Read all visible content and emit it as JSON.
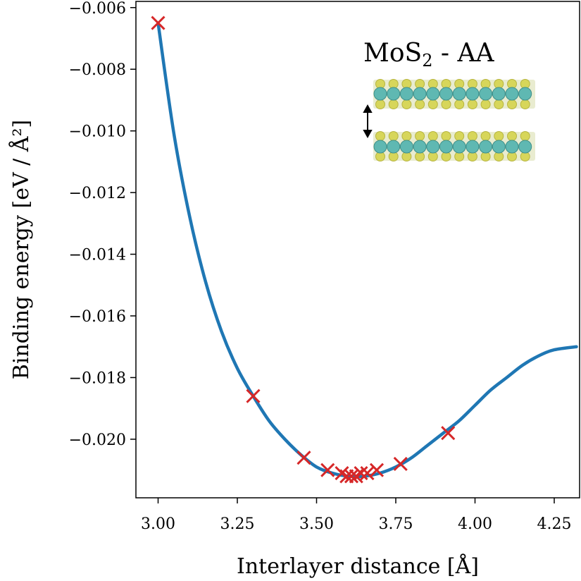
{
  "chart_data": {
    "type": "line",
    "title": "",
    "xlabel": "Interlayer distance [Å]",
    "ylabel": "Binding energy [eV / Å²]",
    "xlim": [
      2.93,
      4.33
    ],
    "ylim": [
      -0.0219,
      -0.0058
    ],
    "x_ticks": [
      3.0,
      3.25,
      3.5,
      3.75,
      4.0,
      4.25
    ],
    "x_tick_labels": [
      "3.00",
      "3.25",
      "3.50",
      "3.75",
      "4.00",
      "4.25"
    ],
    "y_ticks": [
      -0.006,
      -0.008,
      -0.01,
      -0.012,
      -0.014,
      -0.016,
      -0.018,
      -0.02
    ],
    "y_tick_labels": [
      "−0.006",
      "−0.008",
      "−0.010",
      "−0.012",
      "−0.014",
      "−0.016",
      "−0.018",
      "−0.020"
    ],
    "grid": false,
    "series": [
      {
        "kind": "fit-curve",
        "color": "#1f77b4",
        "x": [
          3.0,
          3.05,
          3.1,
          3.15,
          3.2,
          3.25,
          3.3,
          3.35,
          3.4,
          3.45,
          3.5,
          3.55,
          3.6,
          3.65,
          3.7,
          3.75,
          3.8,
          3.85,
          3.9,
          3.95,
          4.0,
          4.05,
          4.1,
          4.15,
          4.2,
          4.25,
          4.32
        ],
        "y": [
          -0.0065,
          -0.0101,
          -0.0128,
          -0.0149,
          -0.0165,
          -0.0177,
          -0.0186,
          -0.0194,
          -0.02,
          -0.0205,
          -0.0209,
          -0.0211,
          -0.0212,
          -0.0212,
          -0.0211,
          -0.0209,
          -0.0206,
          -0.0202,
          -0.0198,
          -0.0194,
          -0.0189,
          -0.0184,
          -0.018,
          -0.0176,
          -0.0173,
          -0.0171,
          -0.017
        ]
      },
      {
        "kind": "computed-points",
        "marker": "x",
        "color": "#d62728",
        "x": [
          3.0,
          3.3,
          3.46,
          3.535,
          3.58,
          3.595,
          3.61,
          3.625,
          3.64,
          3.66,
          3.69,
          3.765,
          3.915
        ],
        "y": [
          -0.0065,
          -0.0186,
          -0.0206,
          -0.021,
          -0.0211,
          -0.0212,
          -0.0212,
          -0.0212,
          -0.0211,
          -0.0211,
          -0.021,
          -0.0208,
          -0.0198
        ]
      }
    ],
    "inset": {
      "label_main": "MoS",
      "label_sub": "2",
      "label_rest": " - AA",
      "colors": {
        "sulfur": "#d7d65a",
        "molybdenum": "#5fb8b2"
      }
    }
  }
}
